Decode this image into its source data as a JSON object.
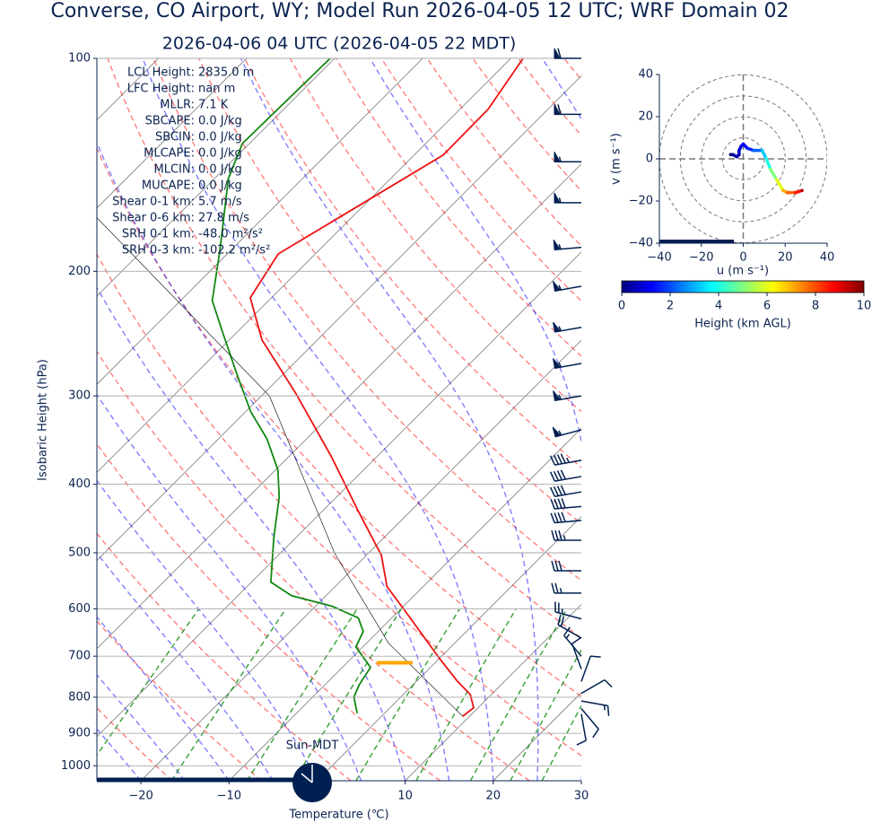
{
  "chart_data": [
    {
      "type": "skewt",
      "title": "Converse, CO Airport, WY; Model Run 2026-04-05 12 UTC; WRF Domain 02",
      "subtitle": "2026-04-06 04 UTC  (2026-04-05 22 MDT)",
      "xlabel": "Temperature (℃)",
      "ylabel": "Isobaric Height (hPa)",
      "yscale": "log",
      "xlim": [
        -25,
        30
      ],
      "ylim": [
        1050,
        100
      ],
      "xticks": [
        {
          "value": -20,
          "label": "−20"
        },
        {
          "value": -10,
          "label": "−10"
        },
        0,
        10,
        20,
        30
      ],
      "yticks": [
        100,
        200,
        300,
        400,
        500,
        600,
        700,
        800,
        900,
        1000
      ],
      "grid": true,
      "series": [
        {
          "color": "#ee1111",
          "width": 1.8,
          "pressure": [
            851,
            828,
            793,
            759,
            705,
            637,
            600,
            558,
            504,
            436,
            366,
            298,
            250,
            218,
            189,
            162,
            137,
            118,
            100
          ],
          "values": [
            9.2,
            9.5,
            7.6,
            4.6,
            0,
            -6.1,
            -9.7,
            -14.1,
            -18.3,
            -26.0,
            -35.1,
            -46.3,
            -56.3,
            -62.4,
            -64.2,
            -60.6,
            -56.7,
            -56.8,
            -58.6
          ]
        },
        {
          "color": "#118811",
          "width": 1.8,
          "pressure": [
            843,
            800,
            769,
            726,
            679,
            646,
            618,
            595,
            575,
            550,
            476,
            417,
            382,
            345,
            316,
            281,
            243,
            220,
            187,
            148,
            132,
            100
          ],
          "values": [
            -3.1,
            -5.3,
            -6.1,
            -6.8,
            -10.8,
            -11.7,
            -13.8,
            -18.1,
            -23.9,
            -27.8,
            -32.5,
            -36.5,
            -39.7,
            -44.5,
            -49.4,
            -55.0,
            -61.8,
            -66.4,
            -71.2,
            -78.4,
            -80.8,
            -80.5
          ]
        },
        {
          "color": "#000000",
          "width": 0.6,
          "pressure": [
            851,
            671,
            500,
            300,
            167
          ],
          "values": [
            9.2,
            -7.5,
            -23.9,
            -49.1,
            -89.3
          ]
        }
      ],
      "lcl": {
        "pressure": 715,
        "temperature": -4.6,
        "color": "#ffa500"
      },
      "wind_barbs": {
        "color": "#002051",
        "pressure": [
          100,
          120,
          140,
          160,
          185,
          210,
          240,
          270,
          300,
          335,
          370,
          390,
          410,
          430,
          450,
          480,
          530,
          570,
          620,
          660,
          700,
          730,
          760,
          790,
          810,
          830,
          845
        ],
        "direction": [
          270,
          270,
          270,
          270,
          265,
          260,
          260,
          260,
          260,
          255,
          260,
          260,
          260,
          265,
          265,
          270,
          270,
          270,
          285,
          300,
          320,
          340,
          20,
          60,
          100,
          140,
          170
        ],
        "speed": [
          60,
          60,
          55,
          55,
          55,
          55,
          55,
          55,
          55,
          55,
          45,
          40,
          40,
          40,
          40,
          35,
          30,
          25,
          25,
          20,
          15,
          10,
          10,
          10,
          15,
          10,
          10
        ]
      },
      "stats": [
        [
          "LCL Height:",
          "2835.0 m"
        ],
        [
          "LFC Height:",
          "nan m"
        ],
        [
          "MLLR:",
          "7.1 K"
        ],
        [
          "SBCAPE:",
          "0.0 J/kg"
        ],
        [
          "SBCIN:",
          "0.0 J/kg"
        ],
        [
          "MLCAPE:",
          "0.0 J/kg"
        ],
        [
          "MLCIN:",
          "0.0 J/kg"
        ],
        [
          "MUCAPE:",
          "0.0 J/kg"
        ],
        [
          "Shear 0-1 km:",
          "5.7 m/s"
        ],
        [
          "Shear 0-6 km:",
          "27.8 m/s"
        ],
        [
          "SRH 0-1 km:",
          "-48.0 m²/s²"
        ],
        [
          "SRH 0-3 km:",
          "-102.2 m²/s²"
        ]
      ],
      "day_label": "Sun-MDT"
    },
    {
      "type": "hodograph",
      "xlabel": "u (m s⁻¹)",
      "ylabel": "v (m s⁻¹)",
      "xlim": [
        -40,
        40
      ],
      "ylim": [
        -40,
        40
      ],
      "xticks": [
        {
          "value": -40,
          "label": "−40"
        },
        {
          "value": -20,
          "label": "−20"
        },
        0,
        20,
        40
      ],
      "yticks": [
        {
          "value": -40,
          "label": "−40"
        },
        {
          "value": -20,
          "label": "−20"
        },
        0,
        20,
        40
      ],
      "u": [
        -6,
        -5,
        -3,
        -2,
        -2,
        -1,
        0,
        2,
        5,
        9,
        11,
        13,
        16,
        19,
        21,
        25,
        28
      ],
      "v": [
        2,
        2,
        1,
        2,
        4,
        6,
        7,
        5,
        4,
        4,
        0,
        -5,
        -10,
        -15,
        -16,
        -16,
        -15
      ],
      "height": [
        0,
        0.2,
        0.4,
        0.6,
        0.8,
        1.0,
        1.2,
        1.6,
        2.2,
        3.2,
        4.0,
        5.0,
        6.0,
        7.0,
        7.8,
        8.6,
        9.5
      ],
      "colormap": "jet",
      "colorbar": {
        "label": "Height (km AGL)",
        "lim": [
          0,
          10
        ],
        "ticks": [
          0,
          2,
          4,
          6,
          8,
          10
        ]
      }
    }
  ]
}
